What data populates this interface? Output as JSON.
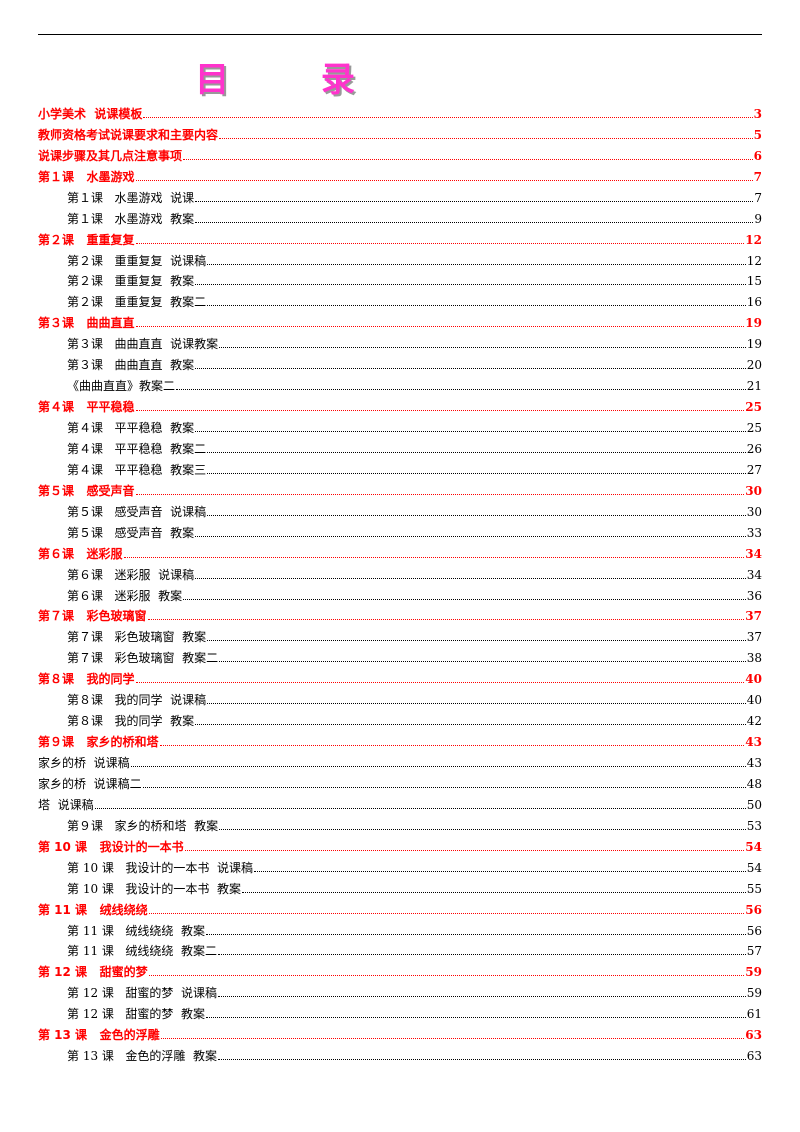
{
  "title": "目 录",
  "entries": [
    {
      "level": 1,
      "label": "小学美术  说课模板",
      "page": "3"
    },
    {
      "level": 1,
      "label": "教师资格考试说课要求和主要内容",
      "page": "5"
    },
    {
      "level": 1,
      "label": "说课步骤及其几点注意事项",
      "page": "6"
    },
    {
      "level": 1,
      "label": "第１课   水墨游戏",
      "page": "7"
    },
    {
      "level": 2,
      "label": "第１课   水墨游戏  说课",
      "page": "7"
    },
    {
      "level": 2,
      "label": "第１课   水墨游戏  教案",
      "page": "9"
    },
    {
      "level": 1,
      "label": "第２课   重重复复",
      "page": "12"
    },
    {
      "level": 2,
      "label": "第２课   重重复复  说课稿",
      "page": "12"
    },
    {
      "level": 2,
      "label": "第２课   重重复复  教案",
      "page": "15"
    },
    {
      "level": 2,
      "label": "第２课   重重复复  教案二",
      "page": "16"
    },
    {
      "level": 1,
      "label": "第３课   曲曲直直",
      "page": "19"
    },
    {
      "level": 2,
      "label": "第３课   曲曲直直  说课教案",
      "page": "19"
    },
    {
      "level": 2,
      "label": "第３课   曲曲直直  教案",
      "page": "20"
    },
    {
      "level": 2,
      "label": "《曲曲直直》教案二",
      "page": "21"
    },
    {
      "level": 1,
      "label": "第４课   平平稳稳",
      "page": "25"
    },
    {
      "level": 2,
      "label": "第４课   平平稳稳  教案",
      "page": "25"
    },
    {
      "level": 2,
      "label": "第４课   平平稳稳  教案二",
      "page": "26"
    },
    {
      "level": 2,
      "label": "第４课   平平稳稳  教案三",
      "page": "27"
    },
    {
      "level": 1,
      "label": "第５课   感受声音",
      "page": "30"
    },
    {
      "level": 2,
      "label": "第５课   感受声音  说课稿",
      "page": "30"
    },
    {
      "level": 2,
      "label": "第５课   感受声音  教案",
      "page": "33"
    },
    {
      "level": 1,
      "label": "第６课   迷彩服",
      "page": "34"
    },
    {
      "level": 2,
      "label": "第６课   迷彩服  说课稿",
      "page": "34"
    },
    {
      "level": 2,
      "label": "第６课   迷彩服  教案",
      "page": "36"
    },
    {
      "level": 1,
      "label": "第７课   彩色玻璃窗",
      "page": "37"
    },
    {
      "level": 2,
      "label": "第７课   彩色玻璃窗  教案",
      "page": "37"
    },
    {
      "level": 2,
      "label": "第７课   彩色玻璃窗  教案二",
      "page": "38"
    },
    {
      "level": 1,
      "label": "第８课   我的同学",
      "page": "40"
    },
    {
      "level": 2,
      "label": "第８课   我的同学  说课稿",
      "page": "40"
    },
    {
      "level": 2,
      "label": "第８课   我的同学  教案",
      "page": "42"
    },
    {
      "level": 1,
      "label": "第９课   家乡的桥和塔",
      "page": "43"
    },
    {
      "level": 2,
      "label": "家乡的桥  说课稿",
      "page": "43",
      "noindent": true
    },
    {
      "level": 2,
      "label": "家乡的桥  说课稿二",
      "page": "48",
      "noindent": true
    },
    {
      "level": 2,
      "label": "塔  说课稿",
      "page": "50",
      "noindent": true
    },
    {
      "level": 2,
      "label": "第９课   家乡的桥和塔  教案",
      "page": "53"
    },
    {
      "level": 1,
      "label": "第 10 课   我设计的一本书",
      "page": "54"
    },
    {
      "level": 2,
      "label": "第 10 课   我设计的一本书  说课稿",
      "page": "54"
    },
    {
      "level": 2,
      "label": "第 10 课   我设计的一本书  教案",
      "page": "55"
    },
    {
      "level": 1,
      "label": "第 11 课   绒线绕绕",
      "page": "56"
    },
    {
      "level": 2,
      "label": "第 11 课   绒线绕绕  教案",
      "page": "56"
    },
    {
      "level": 2,
      "label": "第 11 课   绒线绕绕  教案二",
      "page": "57"
    },
    {
      "level": 1,
      "label": "第 12 课   甜蜜的梦",
      "page": "59"
    },
    {
      "level": 2,
      "label": "第 12 课   甜蜜的梦  说课稿",
      "page": "59"
    },
    {
      "level": 2,
      "label": "第 12 课   甜蜜的梦  教案",
      "page": "61"
    },
    {
      "level": 1,
      "label": "第 13 课   金色的浮雕",
      "page": "63"
    },
    {
      "level": 2,
      "label": "第 13 课   金色的浮雕  教案",
      "page": "63"
    }
  ]
}
